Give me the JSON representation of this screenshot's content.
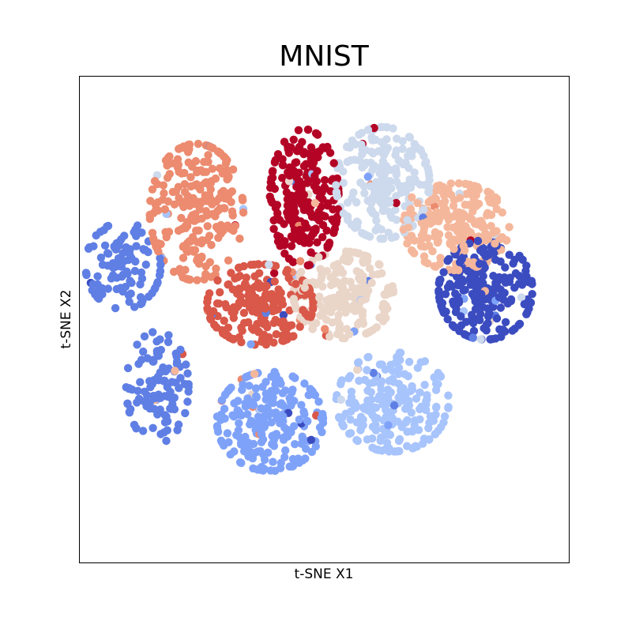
{
  "chart_data": {
    "type": "scatter",
    "title": "MNIST",
    "xlabel": "t-SNE X1",
    "ylabel": "t-SNE X2",
    "xlim": [
      -100,
      100
    ],
    "ylim": [
      -100,
      100
    ],
    "ticks": false,
    "grid": false,
    "legend": "none",
    "colormap": "coolwarm",
    "clusters": [
      {
        "color": "#3b4cc0",
        "center": [
          66,
          12
        ],
        "spread": [
          15,
          16
        ],
        "count": 230
      },
      {
        "color": "#5f7fe4",
        "center": [
          -82,
          22
        ],
        "spread": [
          12,
          14
        ],
        "count": 110
      },
      {
        "color": "#5f7fe4",
        "center": [
          -68,
          -28
        ],
        "spread": [
          10,
          18
        ],
        "count": 110
      },
      {
        "color": "#7fa2f9",
        "center": [
          -22,
          -42
        ],
        "spread": [
          17,
          16
        ],
        "count": 230
      },
      {
        "color": "#a8c4fc",
        "center": [
          28,
          -34
        ],
        "spread": [
          18,
          16
        ],
        "count": 210
      },
      {
        "color": "#cdd9ec",
        "center": [
          24,
          56
        ],
        "spread": [
          15,
          18
        ],
        "count": 210
      },
      {
        "color": "#ead5c9",
        "center": [
          8,
          10
        ],
        "spread": [
          16,
          14
        ],
        "count": 200
      },
      {
        "color": "#f5b79b",
        "center": [
          54,
          38
        ],
        "spread": [
          17,
          14
        ],
        "count": 220
      },
      {
        "color": "#ec8b6f",
        "center": [
          -52,
          44
        ],
        "spread": [
          15,
          22
        ],
        "count": 240
      },
      {
        "color": "#d95849",
        "center": [
          -26,
          6
        ],
        "spread": [
          17,
          13
        ],
        "count": 220
      },
      {
        "color": "#b40426",
        "center": [
          -8,
          50
        ],
        "spread": [
          11,
          22
        ],
        "count": 230
      }
    ]
  }
}
